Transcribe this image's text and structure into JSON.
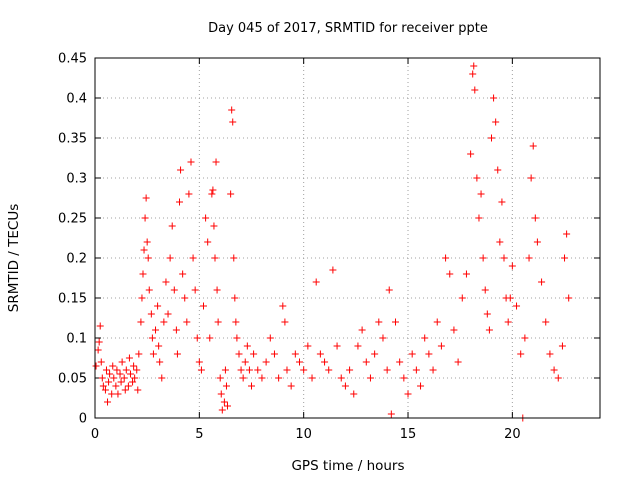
{
  "chart_data": {
    "type": "scatter",
    "title": "Day 045 of 2017, SRMTID for receiver ppte",
    "xlabel": "GPS time / hours",
    "ylabel": "SRMTID / TECUs",
    "xlim": [
      0,
      24.2
    ],
    "ylim": [
      0,
      0.45
    ],
    "xticks": [
      0,
      5,
      10,
      15,
      20
    ],
    "xtick_labels": [
      "0",
      "5",
      "10",
      "15",
      "20"
    ],
    "yticks": [
      0,
      0.05,
      0.1,
      0.15,
      0.2,
      0.25,
      0.3,
      0.35,
      0.4,
      0.45
    ],
    "ytick_labels": [
      "0",
      "0.05",
      "0.1",
      "0.15",
      "0.2",
      "0.25",
      "0.3",
      "0.35",
      "0.4",
      "0.45"
    ],
    "grid": true,
    "marker": "+",
    "colors": {
      "series": "#ff0000",
      "grid": "#a0a0a0",
      "axis": "#000000"
    },
    "series": [
      {
        "name": "SRMTID",
        "points": [
          [
            0.05,
            0.065
          ],
          [
            0.15,
            0.085
          ],
          [
            0.2,
            0.095
          ],
          [
            0.25,
            0.115
          ],
          [
            0.3,
            0.07
          ],
          [
            0.35,
            0.05
          ],
          [
            0.4,
            0.04
          ],
          [
            0.5,
            0.035
          ],
          [
            0.55,
            0.06
          ],
          [
            0.6,
            0.02
          ],
          [
            0.65,
            0.045
          ],
          [
            0.7,
            0.055
          ],
          [
            0.8,
            0.03
          ],
          [
            0.85,
            0.065
          ],
          [
            0.9,
            0.05
          ],
          [
            1.0,
            0.04
          ],
          [
            1.05,
            0.06
          ],
          [
            1.1,
            0.03
          ],
          [
            1.2,
            0.055
          ],
          [
            1.25,
            0.045
          ],
          [
            1.3,
            0.07
          ],
          [
            1.4,
            0.05
          ],
          [
            1.45,
            0.035
          ],
          [
            1.5,
            0.06
          ],
          [
            1.6,
            0.04
          ],
          [
            1.65,
            0.075
          ],
          [
            1.7,
            0.055
          ],
          [
            1.8,
            0.045
          ],
          [
            1.85,
            0.065
          ],
          [
            1.9,
            0.05
          ],
          [
            2.0,
            0.06
          ],
          [
            2.05,
            0.035
          ],
          [
            2.1,
            0.08
          ],
          [
            2.2,
            0.12
          ],
          [
            2.25,
            0.15
          ],
          [
            2.3,
            0.18
          ],
          [
            2.35,
            0.21
          ],
          [
            2.4,
            0.25
          ],
          [
            2.45,
            0.275
          ],
          [
            2.5,
            0.22
          ],
          [
            2.55,
            0.2
          ],
          [
            2.6,
            0.16
          ],
          [
            2.7,
            0.13
          ],
          [
            2.75,
            0.1
          ],
          [
            2.8,
            0.08
          ],
          [
            2.9,
            0.11
          ],
          [
            3.0,
            0.14
          ],
          [
            3.05,
            0.09
          ],
          [
            3.1,
            0.07
          ],
          [
            3.2,
            0.05
          ],
          [
            3.3,
            0.12
          ],
          [
            3.4,
            0.17
          ],
          [
            3.5,
            0.13
          ],
          [
            3.6,
            0.2
          ],
          [
            3.7,
            0.24
          ],
          [
            3.8,
            0.16
          ],
          [
            3.9,
            0.11
          ],
          [
            3.95,
            0.08
          ],
          [
            4.05,
            0.27
          ],
          [
            4.1,
            0.31
          ],
          [
            4.2,
            0.18
          ],
          [
            4.3,
            0.15
          ],
          [
            4.4,
            0.12
          ],
          [
            4.5,
            0.28
          ],
          [
            4.6,
            0.32
          ],
          [
            4.7,
            0.2
          ],
          [
            4.8,
            0.16
          ],
          [
            4.9,
            0.1
          ],
          [
            5.0,
            0.07
          ],
          [
            5.1,
            0.06
          ],
          [
            5.2,
            0.14
          ],
          [
            5.3,
            0.25
          ],
          [
            5.4,
            0.22
          ],
          [
            5.5,
            0.1
          ],
          [
            5.6,
            0.28
          ],
          [
            5.65,
            0.285
          ],
          [
            5.7,
            0.24
          ],
          [
            5.75,
            0.2
          ],
          [
            5.8,
            0.32
          ],
          [
            5.85,
            0.16
          ],
          [
            5.9,
            0.12
          ],
          [
            6.0,
            0.05
          ],
          [
            6.05,
            0.03
          ],
          [
            6.1,
            0.01
          ],
          [
            6.2,
            0.02
          ],
          [
            6.25,
            0.06
          ],
          [
            6.3,
            0.04
          ],
          [
            6.35,
            0.015
          ],
          [
            6.5,
            0.28
          ],
          [
            6.55,
            0.385
          ],
          [
            6.6,
            0.37
          ],
          [
            6.65,
            0.2
          ],
          [
            6.7,
            0.15
          ],
          [
            6.75,
            0.12
          ],
          [
            6.8,
            0.1
          ],
          [
            6.9,
            0.08
          ],
          [
            7.0,
            0.06
          ],
          [
            7.1,
            0.05
          ],
          [
            7.2,
            0.07
          ],
          [
            7.3,
            0.09
          ],
          [
            7.4,
            0.06
          ],
          [
            7.5,
            0.04
          ],
          [
            7.6,
            0.08
          ],
          [
            7.8,
            0.06
          ],
          [
            8.0,
            0.05
          ],
          [
            8.2,
            0.07
          ],
          [
            8.4,
            0.1
          ],
          [
            8.6,
            0.08
          ],
          [
            8.8,
            0.05
          ],
          [
            9.0,
            0.14
          ],
          [
            9.1,
            0.12
          ],
          [
            9.2,
            0.06
          ],
          [
            9.4,
            0.04
          ],
          [
            9.6,
            0.08
          ],
          [
            9.8,
            0.07
          ],
          [
            10.0,
            0.06
          ],
          [
            10.2,
            0.09
          ],
          [
            10.4,
            0.05
          ],
          [
            10.6,
            0.17
          ],
          [
            10.8,
            0.08
          ],
          [
            11.0,
            0.07
          ],
          [
            11.2,
            0.06
          ],
          [
            11.4,
            0.185
          ],
          [
            11.6,
            0.09
          ],
          [
            11.8,
            0.05
          ],
          [
            12.0,
            0.04
          ],
          [
            12.2,
            0.06
          ],
          [
            12.4,
            0.03
          ],
          [
            12.6,
            0.09
          ],
          [
            12.8,
            0.11
          ],
          [
            13.0,
            0.07
          ],
          [
            13.2,
            0.05
          ],
          [
            13.4,
            0.08
          ],
          [
            13.6,
            0.12
          ],
          [
            13.8,
            0.1
          ],
          [
            14.0,
            0.06
          ],
          [
            14.1,
            0.16
          ],
          [
            14.2,
            0.005
          ],
          [
            14.4,
            0.12
          ],
          [
            14.6,
            0.07
          ],
          [
            14.8,
            0.05
          ],
          [
            15.0,
            0.03
          ],
          [
            15.2,
            0.08
          ],
          [
            15.4,
            0.06
          ],
          [
            15.6,
            0.04
          ],
          [
            15.8,
            0.1
          ],
          [
            16.0,
            0.08
          ],
          [
            16.2,
            0.06
          ],
          [
            16.4,
            0.12
          ],
          [
            16.6,
            0.09
          ],
          [
            16.8,
            0.2
          ],
          [
            17.0,
            0.18
          ],
          [
            17.2,
            0.11
          ],
          [
            17.4,
            0.07
          ],
          [
            17.6,
            0.15
          ],
          [
            17.8,
            0.18
          ],
          [
            18.0,
            0.33
          ],
          [
            18.1,
            0.43
          ],
          [
            18.15,
            0.44
          ],
          [
            18.2,
            0.41
          ],
          [
            18.3,
            0.3
          ],
          [
            18.4,
            0.25
          ],
          [
            18.5,
            0.28
          ],
          [
            18.6,
            0.2
          ],
          [
            18.7,
            0.16
          ],
          [
            18.8,
            0.13
          ],
          [
            18.9,
            0.11
          ],
          [
            19.0,
            0.35
          ],
          [
            19.1,
            0.4
          ],
          [
            19.2,
            0.37
          ],
          [
            19.3,
            0.31
          ],
          [
            19.4,
            0.22
          ],
          [
            19.5,
            0.27
          ],
          [
            19.6,
            0.2
          ],
          [
            19.7,
            0.15
          ],
          [
            19.8,
            0.12
          ],
          [
            19.9,
            0.15
          ],
          [
            20.0,
            0.19
          ],
          [
            20.2,
            0.14
          ],
          [
            20.4,
            0.08
          ],
          [
            20.5,
            0.0
          ],
          [
            20.6,
            0.1
          ],
          [
            20.8,
            0.2
          ],
          [
            20.9,
            0.3
          ],
          [
            21.0,
            0.34
          ],
          [
            21.1,
            0.25
          ],
          [
            21.2,
            0.22
          ],
          [
            21.4,
            0.17
          ],
          [
            21.6,
            0.12
          ],
          [
            21.8,
            0.08
          ],
          [
            22.0,
            0.06
          ],
          [
            22.2,
            0.05
          ],
          [
            22.4,
            0.09
          ],
          [
            22.5,
            0.2
          ],
          [
            22.6,
            0.23
          ],
          [
            22.7,
            0.15
          ]
        ]
      }
    ]
  }
}
